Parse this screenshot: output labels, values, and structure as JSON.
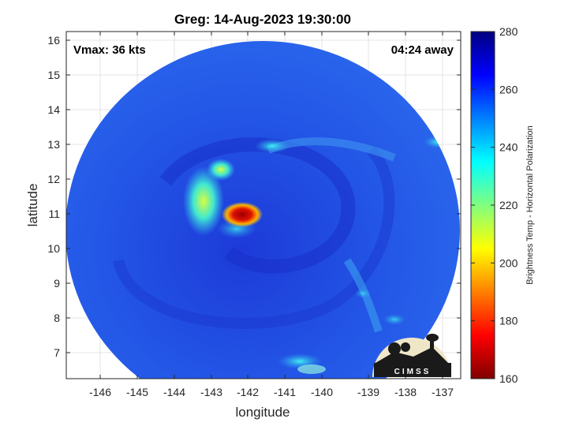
{
  "title": "Greg: 14-Aug-2023 19:30:00",
  "vmax_text": "Vmax: 36 kts",
  "eta_text": "04:24 away",
  "xlabel": "longitude",
  "ylabel": "latitude",
  "xticks": [
    "-146",
    "-145",
    "-144",
    "-143",
    "-142",
    "-141",
    "-140",
    "-139",
    "-138",
    "-137"
  ],
  "yticks": [
    "16",
    "15",
    "14",
    "13",
    "12",
    "11",
    "10",
    "9",
    "8",
    "7"
  ],
  "colorbar": {
    "label": "Brightness Temp - Horizontal Polarization",
    "ticks": [
      "280",
      "260",
      "240",
      "220",
      "200",
      "180",
      "160"
    ],
    "range": [
      160,
      280
    ],
    "colormap": "jet"
  },
  "logo_text": "CIMSS",
  "colors": {
    "background_field": "#1f4fe0",
    "eye_core": "#c80000",
    "eye_ring": "#ffb400"
  }
}
